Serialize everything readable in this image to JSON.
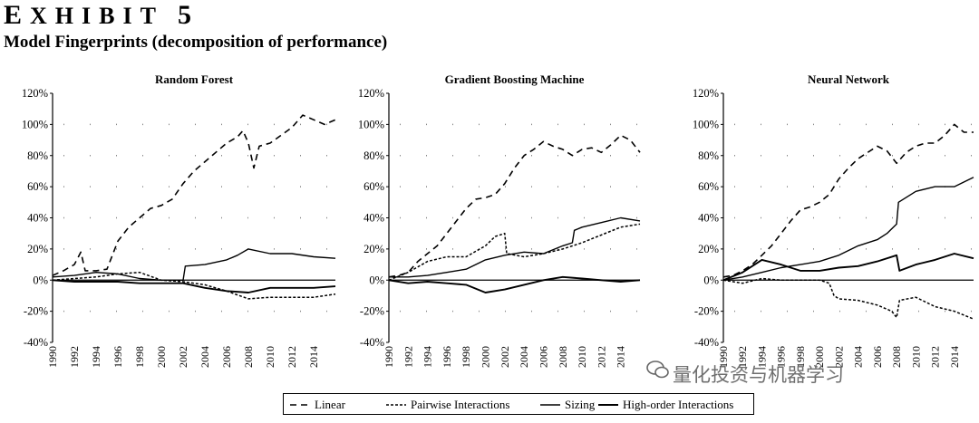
{
  "header": {
    "exhibit_first": "E",
    "exhibit_rest": "XHIBIT",
    "exhibit_num": "5",
    "subtitle": "Model Fingerprints (decomposition of performance)"
  },
  "watermark": {
    "text": "量化投资与机器学习"
  },
  "chart_data": [
    {
      "type": "line",
      "title": "Random Forest",
      "ylim": [
        -0.4,
        1.2
      ],
      "y_ticks": [
        "120%",
        "100%",
        "80%",
        "60%",
        "40%",
        "20%",
        "0%",
        "-20%",
        "-40%"
      ],
      "x_range": [
        1990,
        2016
      ],
      "x_ticks": [
        "1990",
        "1992",
        "1994",
        "1996",
        "1998",
        "2000",
        "2002",
        "2004",
        "2006",
        "2008",
        "2010",
        "2012",
        "2014"
      ],
      "grid": "dotted horizontal",
      "series": [
        {
          "name": "Linear",
          "x": [
            1990,
            1991,
            1992,
            1992.6,
            1993,
            1994,
            1995,
            1996,
            1997,
            1998,
            1999,
            2000,
            2001,
            2002,
            2003,
            2004,
            2005,
            2006,
            2007,
            2007.5,
            2008,
            2008.5,
            2009,
            2010,
            2011,
            2012,
            2013,
            2014,
            2015,
            2016
          ],
          "y": [
            0.03,
            0.06,
            0.1,
            0.18,
            0.06,
            0.06,
            0.07,
            0.25,
            0.34,
            0.4,
            0.46,
            0.48,
            0.52,
            0.62,
            0.7,
            0.76,
            0.82,
            0.88,
            0.92,
            0.96,
            0.88,
            0.72,
            0.86,
            0.88,
            0.93,
            0.98,
            1.06,
            1.03,
            1.0,
            1.03
          ]
        },
        {
          "name": "Pairwise Interactions",
          "x": [
            1990,
            1992,
            1994,
            1996,
            1998,
            2000,
            2002,
            2004,
            2006,
            2008,
            2010,
            2012,
            2014,
            2016
          ],
          "y": [
            0.0,
            0.01,
            0.02,
            0.04,
            0.05,
            0.0,
            -0.01,
            -0.03,
            -0.07,
            -0.12,
            -0.11,
            -0.11,
            -0.11,
            -0.09
          ]
        },
        {
          "name": "Sizing",
          "x": [
            1990,
            1992,
            1994,
            1996,
            1998,
            2000,
            2002,
            2002.2,
            2004,
            2006,
            2007,
            2008,
            2010,
            2012,
            2014,
            2016
          ],
          "y": [
            0.02,
            0.03,
            0.05,
            0.04,
            0.01,
            0.0,
            0.0,
            0.09,
            0.1,
            0.13,
            0.16,
            0.2,
            0.17,
            0.17,
            0.15,
            0.14
          ]
        },
        {
          "name": "High-order Interactions",
          "x": [
            1990,
            1992,
            1994,
            1996,
            1998,
            2000,
            2002,
            2004,
            2006,
            2008,
            2010,
            2012,
            2014,
            2016
          ],
          "y": [
            0.0,
            -0.01,
            -0.01,
            -0.01,
            -0.02,
            -0.02,
            -0.02,
            -0.05,
            -0.07,
            -0.08,
            -0.05,
            -0.05,
            -0.05,
            -0.04
          ]
        }
      ]
    },
    {
      "type": "line",
      "title": "Gradient Boosting Machine",
      "ylim": [
        -0.4,
        1.2
      ],
      "y_ticks": [
        "120%",
        "100%",
        "80%",
        "60%",
        "40%",
        "20%",
        "0%",
        "-20%",
        "-40%"
      ],
      "x_range": [
        1990,
        2016
      ],
      "x_ticks": [
        "1990",
        "1992",
        "1994",
        "1996",
        "1998",
        "2000",
        "2002",
        "2004",
        "2006",
        "2008",
        "2010",
        "2012",
        "2014"
      ],
      "grid": "dotted horizontal",
      "series": [
        {
          "name": "Linear",
          "x": [
            1990,
            1991,
            1992,
            1993,
            1994,
            1995,
            1996,
            1997,
            1998,
            1999,
            2000,
            2001,
            2002,
            2003,
            2004,
            2005,
            2006,
            2007,
            2008,
            2009,
            2010,
            2011,
            2012,
            2013,
            2014,
            2015,
            2016
          ],
          "y": [
            0.02,
            0.03,
            0.05,
            0.12,
            0.17,
            0.22,
            0.3,
            0.38,
            0.46,
            0.52,
            0.53,
            0.55,
            0.62,
            0.72,
            0.8,
            0.84,
            0.89,
            0.86,
            0.84,
            0.8,
            0.84,
            0.85,
            0.82,
            0.87,
            0.93,
            0.9,
            0.82
          ]
        },
        {
          "name": "Pairwise Interactions",
          "x": [
            1990,
            1992,
            1994,
            1996,
            1998,
            2000,
            2001,
            2002,
            2002.2,
            2004,
            2006,
            2008,
            2010,
            2012,
            2014,
            2016
          ],
          "y": [
            0.0,
            0.05,
            0.12,
            0.15,
            0.15,
            0.22,
            0.28,
            0.3,
            0.17,
            0.15,
            0.17,
            0.2,
            0.24,
            0.29,
            0.34,
            0.36
          ]
        },
        {
          "name": "Sizing",
          "x": [
            1990,
            1992,
            1994,
            1996,
            1998,
            2000,
            2002,
            2004,
            2006,
            2008,
            2009,
            2009.2,
            2010,
            2012,
            2014,
            2016
          ],
          "y": [
            0.02,
            0.02,
            0.03,
            0.05,
            0.07,
            0.13,
            0.16,
            0.18,
            0.17,
            0.22,
            0.24,
            0.32,
            0.34,
            0.37,
            0.4,
            0.38
          ]
        },
        {
          "name": "High-order Interactions",
          "x": [
            1990,
            1992,
            1994,
            1996,
            1998,
            2000,
            2002,
            2004,
            2006,
            2008,
            2010,
            2012,
            2014,
            2016
          ],
          "y": [
            0.0,
            -0.02,
            -0.01,
            -0.02,
            -0.03,
            -0.08,
            -0.06,
            -0.03,
            0.0,
            0.02,
            0.01,
            0.0,
            -0.01,
            0.0
          ]
        }
      ]
    },
    {
      "type": "line",
      "title": "Neural Network",
      "ylim": [
        -0.4,
        1.2
      ],
      "y_ticks": [
        "120%",
        "100%",
        "80%",
        "60%",
        "40%",
        "20%",
        "0%",
        "-20%",
        "-40%"
      ],
      "x_range": [
        1990,
        2016
      ],
      "x_ticks": [
        "1990",
        "1992",
        "1994",
        "1996",
        "1998",
        "2000",
        "2002",
        "2004",
        "2006",
        "2008",
        "2010",
        "2012",
        "2014"
      ],
      "grid": "dotted horizontal",
      "series": [
        {
          "name": "Linear",
          "x": [
            1990,
            1991,
            1992,
            1993,
            1994,
            1995,
            1996,
            1997,
            1998,
            1999,
            2000,
            2001,
            2002,
            2003,
            2004,
            2005,
            2006,
            2007,
            2008,
            2009,
            2010,
            2011,
            2012,
            2013,
            2014,
            2015,
            2016
          ],
          "y": [
            0.02,
            0.03,
            0.06,
            0.1,
            0.16,
            0.22,
            0.3,
            0.38,
            0.45,
            0.47,
            0.5,
            0.55,
            0.65,
            0.72,
            0.78,
            0.82,
            0.86,
            0.83,
            0.75,
            0.82,
            0.86,
            0.88,
            0.88,
            0.93,
            1.0,
            0.95,
            0.95
          ]
        },
        {
          "name": "Pairwise Interactions",
          "x": [
            1990,
            1992,
            1994,
            1996,
            1998,
            2000,
            2001,
            2001.5,
            2002,
            2004,
            2006,
            2007.5,
            2008,
            2008.3,
            2010,
            2012,
            2014,
            2016
          ],
          "y": [
            0.0,
            -0.02,
            0.01,
            0.0,
            0.0,
            0.0,
            -0.02,
            -0.1,
            -0.12,
            -0.13,
            -0.16,
            -0.2,
            -0.24,
            -0.13,
            -0.11,
            -0.17,
            -0.2,
            -0.25
          ]
        },
        {
          "name": "Sizing",
          "x": [
            1990,
            1992,
            1994,
            1996,
            1998,
            2000,
            2002,
            2004,
            2006,
            2007,
            2008,
            2008.2,
            2010,
            2012,
            2014,
            2016
          ],
          "y": [
            0.0,
            0.02,
            0.05,
            0.08,
            0.1,
            0.12,
            0.16,
            0.22,
            0.26,
            0.3,
            0.36,
            0.5,
            0.57,
            0.6,
            0.6,
            0.66
          ]
        },
        {
          "name": "High-order Interactions",
          "x": [
            1990,
            1992,
            1994,
            1996,
            1998,
            2000,
            2002,
            2004,
            2006,
            2008,
            2008.3,
            2010,
            2012,
            2014,
            2016
          ],
          "y": [
            0.0,
            0.05,
            0.13,
            0.1,
            0.06,
            0.06,
            0.08,
            0.09,
            0.12,
            0.16,
            0.06,
            0.1,
            0.13,
            0.17,
            0.14
          ]
        }
      ]
    }
  ],
  "legend": {
    "items": [
      {
        "label": "Linear",
        "dash": "7,5"
      },
      {
        "label": "Pairwise Interactions",
        "dash": "3,2"
      },
      {
        "label": "Sizing",
        "dash": ""
      },
      {
        "label": "High-order Interactions",
        "dash": ""
      }
    ]
  }
}
